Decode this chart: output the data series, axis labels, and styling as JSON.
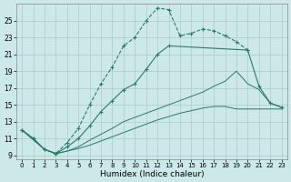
{
  "xlabel": "Humidex (Indice chaleur)",
  "background_color": "#cce8e8",
  "grid_color": "#aacccc",
  "line_color": "#2a7a6a",
  "xlim": [
    -0.5,
    23.5
  ],
  "ylim": [
    8.5,
    27.0
  ],
  "xticks": [
    0,
    1,
    2,
    3,
    4,
    5,
    6,
    7,
    8,
    9,
    10,
    11,
    12,
    13,
    14,
    15,
    16,
    17,
    18,
    19,
    20,
    21,
    22,
    23
  ],
  "yticks": [
    9,
    11,
    13,
    15,
    17,
    19,
    21,
    23,
    25
  ],
  "curve1_x": [
    0,
    1,
    2,
    3,
    4,
    5,
    6,
    7,
    8,
    9,
    10,
    11,
    12,
    13,
    14,
    15,
    16,
    17,
    18,
    19,
    20
  ],
  "curve1_y": [
    12.0,
    11.0,
    9.7,
    9.2,
    10.5,
    12.2,
    15.0,
    17.5,
    19.5,
    22.0,
    23.0,
    25.0,
    26.5,
    26.3,
    23.2,
    23.5,
    24.0,
    23.8,
    23.2,
    22.5,
    21.5
  ],
  "curve2_x": [
    0,
    1,
    2,
    3,
    4,
    5,
    6,
    7,
    8,
    9,
    10,
    11,
    12,
    13,
    20,
    21,
    22,
    23
  ],
  "curve2_y": [
    12.0,
    11.0,
    9.7,
    9.2,
    10.0,
    11.0,
    12.5,
    14.2,
    15.5,
    16.8,
    17.5,
    19.2,
    21.0,
    22.0,
    21.5,
    17.2,
    15.2,
    14.7
  ],
  "curve3_x": [
    0,
    2,
    3,
    4,
    5,
    6,
    7,
    8,
    9,
    10,
    11,
    12,
    13,
    14,
    15,
    16,
    17,
    18,
    19,
    20,
    21,
    22,
    23
  ],
  "curve3_y": [
    12.0,
    9.7,
    9.2,
    9.5,
    10.0,
    10.8,
    11.5,
    12.2,
    13.0,
    13.5,
    14.0,
    14.5,
    15.0,
    15.5,
    16.0,
    16.5,
    17.2,
    17.8,
    19.0,
    17.5,
    16.8,
    15.2,
    14.7
  ],
  "curve4_x": [
    0,
    2,
    3,
    4,
    5,
    6,
    7,
    8,
    9,
    10,
    11,
    12,
    13,
    14,
    15,
    16,
    17,
    18,
    19,
    20,
    21,
    22,
    23
  ],
  "curve4_y": [
    12.0,
    9.7,
    9.2,
    9.5,
    9.8,
    10.2,
    10.7,
    11.2,
    11.7,
    12.2,
    12.7,
    13.2,
    13.6,
    14.0,
    14.3,
    14.6,
    14.8,
    14.8,
    14.5,
    14.5,
    14.5,
    14.5,
    14.5
  ]
}
